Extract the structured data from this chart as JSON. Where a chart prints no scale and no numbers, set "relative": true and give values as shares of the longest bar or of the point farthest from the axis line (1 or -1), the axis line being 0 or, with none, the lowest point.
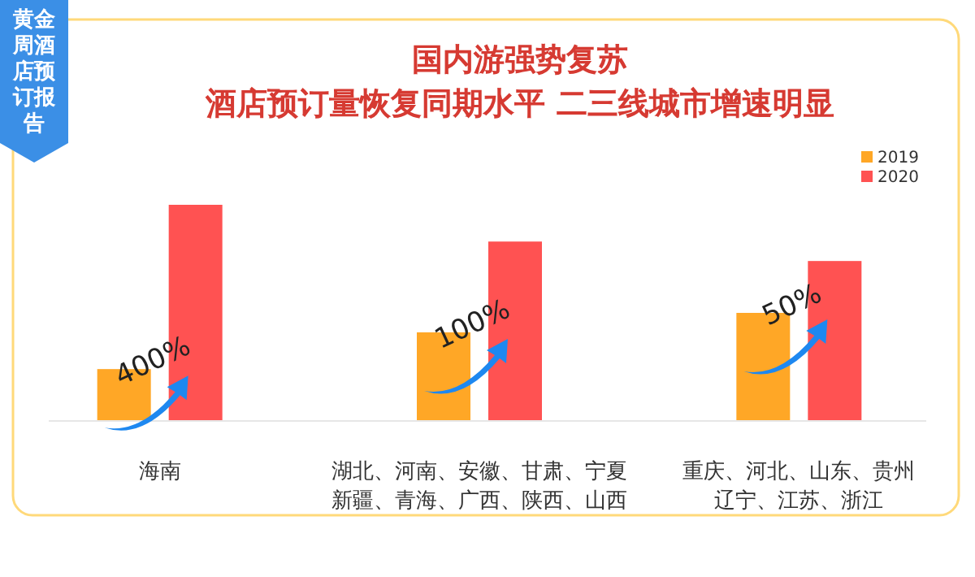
{
  "chart_data": {
    "type": "bar",
    "relative": true,
    "title": "国内游强势复苏",
    "subtitle": "酒店预订量恢复同期水平 二三线城市增速明显",
    "categories": [
      "海南",
      "湖北、河南、安徽、甘肃、宁夏新疆、青海、广西、陕西、山西",
      "重庆、河北、山东、贵州辽宁、江苏、浙江"
    ],
    "series": [
      {
        "name": "2019",
        "color": "#ffa726",
        "values": [
          0.24,
          0.41,
          0.5
        ]
      },
      {
        "name": "2020",
        "color": "#ff5252",
        "values": [
          1,
          0.83,
          0.74
        ]
      }
    ],
    "legend": "top right",
    "annotations": [
      "黄金周酒店预订报告",
      "400%",
      "100%",
      "50%"
    ]
  }
}
